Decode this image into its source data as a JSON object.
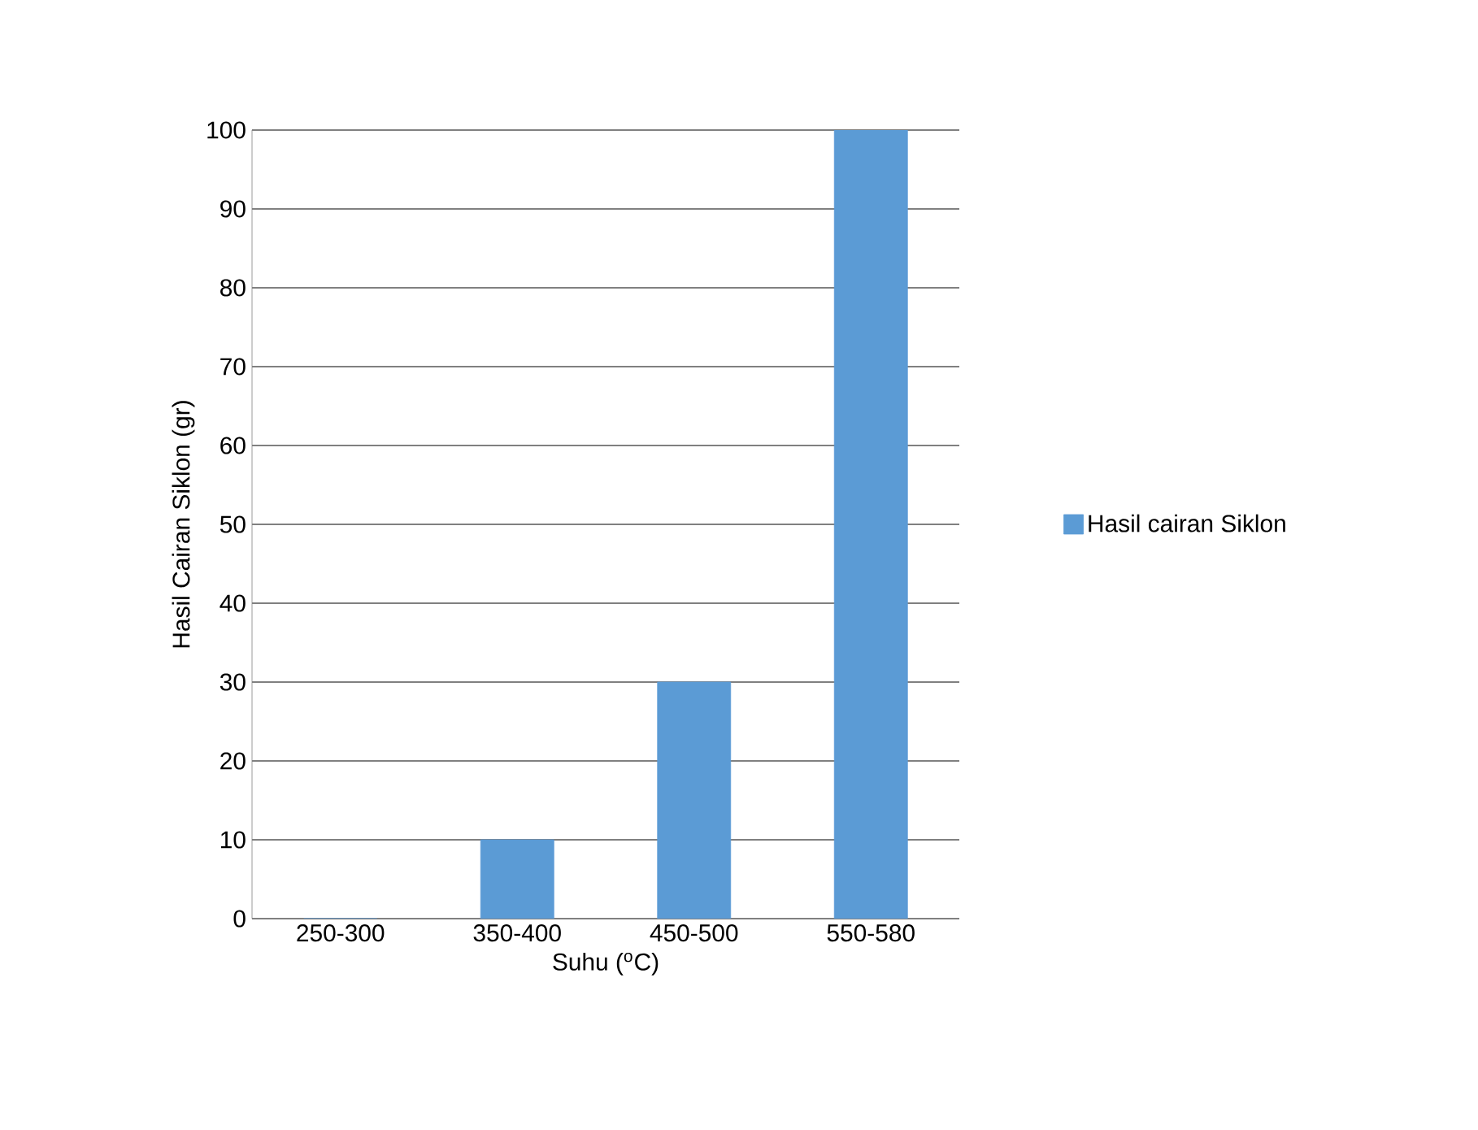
{
  "chart_data": {
    "type": "bar",
    "xlabel": "Suhu ($^{o}$C)",
    "ylabel": "Hasil Cairan Siklon (gr)",
    "categories": [
      "250-300",
      "350-400",
      "450-500",
      "550-580"
    ],
    "series": [
      {
        "name": "Hasil cairan Siklon",
        "color": "#5b9bd5",
        "values": [
          0,
          10,
          30,
          100
        ]
      }
    ],
    "ylim": [
      0,
      100
    ],
    "yticks": [
      0,
      10,
      20,
      30,
      40,
      50,
      60,
      70,
      80,
      90,
      100
    ],
    "grid": "y",
    "legend": "right"
  }
}
